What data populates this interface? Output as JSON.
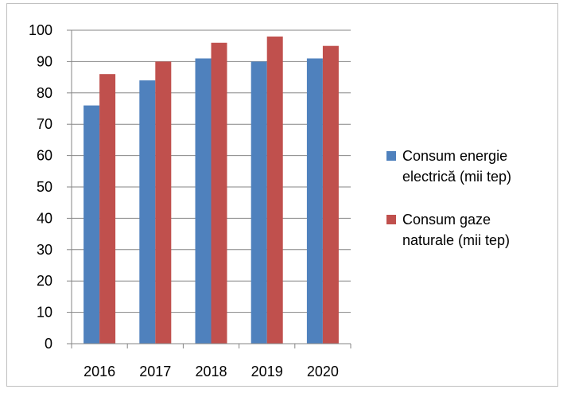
{
  "chart_data": {
    "type": "bar",
    "title": "",
    "xlabel": "",
    "ylabel": "",
    "categories": [
      "2016",
      "2017",
      "2018",
      "2019",
      "2020"
    ],
    "ylim": [
      0,
      100
    ],
    "yticks": [
      0,
      10,
      20,
      30,
      40,
      50,
      60,
      70,
      80,
      90,
      100
    ],
    "grid": true,
    "legend_position": "right",
    "series": [
      {
        "name": "Consum energie electrică (mii tep)",
        "name_lines": [
          "Consum energie",
          "electrică (mii tep)"
        ],
        "color": "#4f81bd",
        "values": [
          76,
          84,
          91,
          90,
          91
        ]
      },
      {
        "name": "Consum gaze naturale (mii tep)",
        "name_lines": [
          "Consum gaze",
          "naturale (mii tep)"
        ],
        "color": "#c0504d",
        "values": [
          86,
          90,
          96,
          98,
          95
        ]
      }
    ]
  }
}
